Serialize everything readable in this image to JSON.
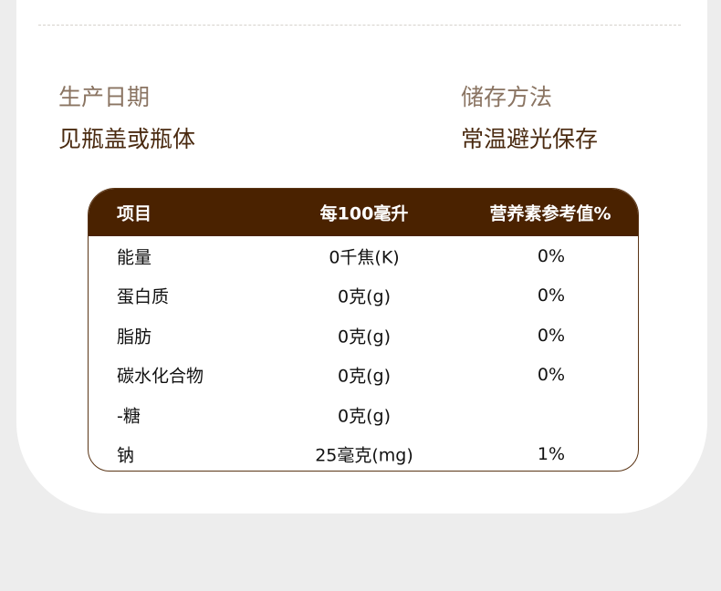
{
  "info": {
    "production_date": {
      "label": "生产日期",
      "value": "见瓶盖或瓶体"
    },
    "storage": {
      "label": "储存方法",
      "value": "常温避光保存"
    }
  },
  "table": {
    "headers": [
      "项目",
      "每100毫升",
      "营养素参考值%"
    ],
    "rows": [
      [
        "能量",
        "0千焦(K)",
        "0%"
      ],
      [
        "蛋白质",
        "0克(g)",
        "0%"
      ],
      [
        "脂肪",
        "0克(g)",
        "0%"
      ],
      [
        "碳水化合物",
        "0克(g)",
        "0%"
      ],
      [
        "-糖",
        "0克(g)",
        ""
      ],
      [
        "钠",
        "25毫克(mg)",
        "1%"
      ]
    ]
  },
  "colors": {
    "header_bg": "#4a2200",
    "label": "#8a7462",
    "value": "#4a2a10"
  }
}
